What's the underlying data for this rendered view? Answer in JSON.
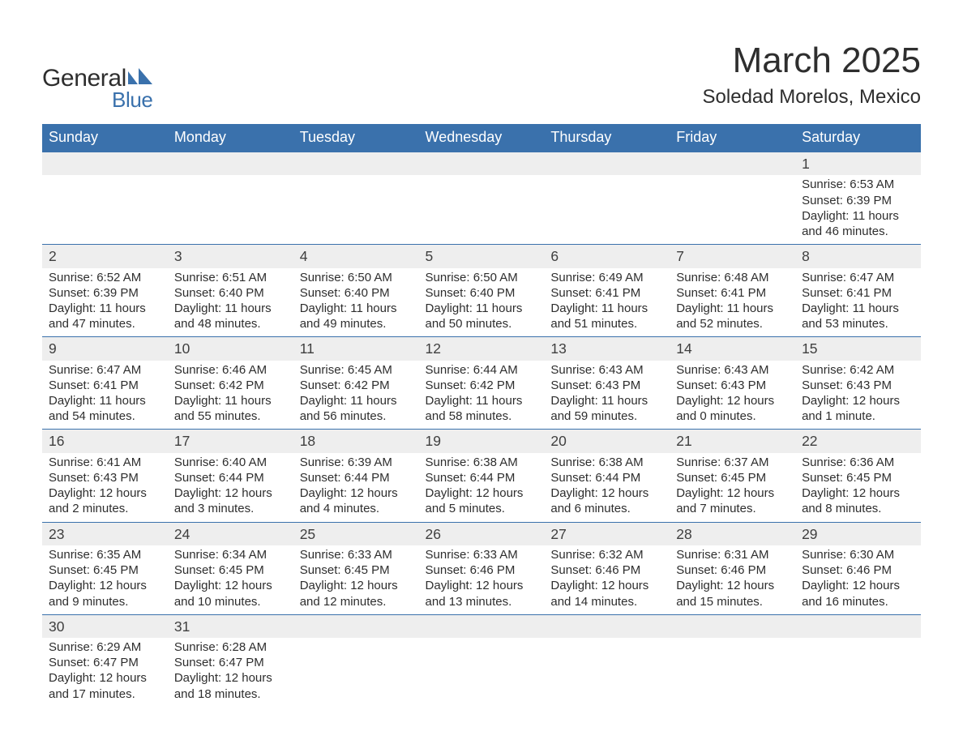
{
  "logo": {
    "line1": "General",
    "line2": "Blue",
    "accent_color": "#3a71ac"
  },
  "title": "March 2025",
  "location": "Soledad Morelos, Mexico",
  "header_bg": "#3a71ac",
  "header_fg": "#ffffff",
  "daynum_bg": "#eeeeee",
  "text_color": "#2e2e2e",
  "columns": [
    "Sunday",
    "Monday",
    "Tuesday",
    "Wednesday",
    "Thursday",
    "Friday",
    "Saturday"
  ],
  "weeks": [
    {
      "nums": [
        "",
        "",
        "",
        "",
        "",
        "",
        "1"
      ],
      "cells": [
        "",
        "",
        "",
        "",
        "",
        "",
        "Sunrise: 6:53 AM\nSunset: 6:39 PM\nDaylight: 11 hours and 46 minutes."
      ]
    },
    {
      "nums": [
        "2",
        "3",
        "4",
        "5",
        "6",
        "7",
        "8"
      ],
      "cells": [
        "Sunrise: 6:52 AM\nSunset: 6:39 PM\nDaylight: 11 hours and 47 minutes.",
        "Sunrise: 6:51 AM\nSunset: 6:40 PM\nDaylight: 11 hours and 48 minutes.",
        "Sunrise: 6:50 AM\nSunset: 6:40 PM\nDaylight: 11 hours and 49 minutes.",
        "Sunrise: 6:50 AM\nSunset: 6:40 PM\nDaylight: 11 hours and 50 minutes.",
        "Sunrise: 6:49 AM\nSunset: 6:41 PM\nDaylight: 11 hours and 51 minutes.",
        "Sunrise: 6:48 AM\nSunset: 6:41 PM\nDaylight: 11 hours and 52 minutes.",
        "Sunrise: 6:47 AM\nSunset: 6:41 PM\nDaylight: 11 hours and 53 minutes."
      ]
    },
    {
      "nums": [
        "9",
        "10",
        "11",
        "12",
        "13",
        "14",
        "15"
      ],
      "cells": [
        "Sunrise: 6:47 AM\nSunset: 6:41 PM\nDaylight: 11 hours and 54 minutes.",
        "Sunrise: 6:46 AM\nSunset: 6:42 PM\nDaylight: 11 hours and 55 minutes.",
        "Sunrise: 6:45 AM\nSunset: 6:42 PM\nDaylight: 11 hours and 56 minutes.",
        "Sunrise: 6:44 AM\nSunset: 6:42 PM\nDaylight: 11 hours and 58 minutes.",
        "Sunrise: 6:43 AM\nSunset: 6:43 PM\nDaylight: 11 hours and 59 minutes.",
        "Sunrise: 6:43 AM\nSunset: 6:43 PM\nDaylight: 12 hours and 0 minutes.",
        "Sunrise: 6:42 AM\nSunset: 6:43 PM\nDaylight: 12 hours and 1 minute."
      ]
    },
    {
      "nums": [
        "16",
        "17",
        "18",
        "19",
        "20",
        "21",
        "22"
      ],
      "cells": [
        "Sunrise: 6:41 AM\nSunset: 6:43 PM\nDaylight: 12 hours and 2 minutes.",
        "Sunrise: 6:40 AM\nSunset: 6:44 PM\nDaylight: 12 hours and 3 minutes.",
        "Sunrise: 6:39 AM\nSunset: 6:44 PM\nDaylight: 12 hours and 4 minutes.",
        "Sunrise: 6:38 AM\nSunset: 6:44 PM\nDaylight: 12 hours and 5 minutes.",
        "Sunrise: 6:38 AM\nSunset: 6:44 PM\nDaylight: 12 hours and 6 minutes.",
        "Sunrise: 6:37 AM\nSunset: 6:45 PM\nDaylight: 12 hours and 7 minutes.",
        "Sunrise: 6:36 AM\nSunset: 6:45 PM\nDaylight: 12 hours and 8 minutes."
      ]
    },
    {
      "nums": [
        "23",
        "24",
        "25",
        "26",
        "27",
        "28",
        "29"
      ],
      "cells": [
        "Sunrise: 6:35 AM\nSunset: 6:45 PM\nDaylight: 12 hours and 9 minutes.",
        "Sunrise: 6:34 AM\nSunset: 6:45 PM\nDaylight: 12 hours and 10 minutes.",
        "Sunrise: 6:33 AM\nSunset: 6:45 PM\nDaylight: 12 hours and 12 minutes.",
        "Sunrise: 6:33 AM\nSunset: 6:46 PM\nDaylight: 12 hours and 13 minutes.",
        "Sunrise: 6:32 AM\nSunset: 6:46 PM\nDaylight: 12 hours and 14 minutes.",
        "Sunrise: 6:31 AM\nSunset: 6:46 PM\nDaylight: 12 hours and 15 minutes.",
        "Sunrise: 6:30 AM\nSunset: 6:46 PM\nDaylight: 12 hours and 16 minutes."
      ]
    },
    {
      "nums": [
        "30",
        "31",
        "",
        "",
        "",
        "",
        ""
      ],
      "cells": [
        "Sunrise: 6:29 AM\nSunset: 6:47 PM\nDaylight: 12 hours and 17 minutes.",
        "Sunrise: 6:28 AM\nSunset: 6:47 PM\nDaylight: 12 hours and 18 minutes.",
        "",
        "",
        "",
        "",
        ""
      ]
    }
  ]
}
